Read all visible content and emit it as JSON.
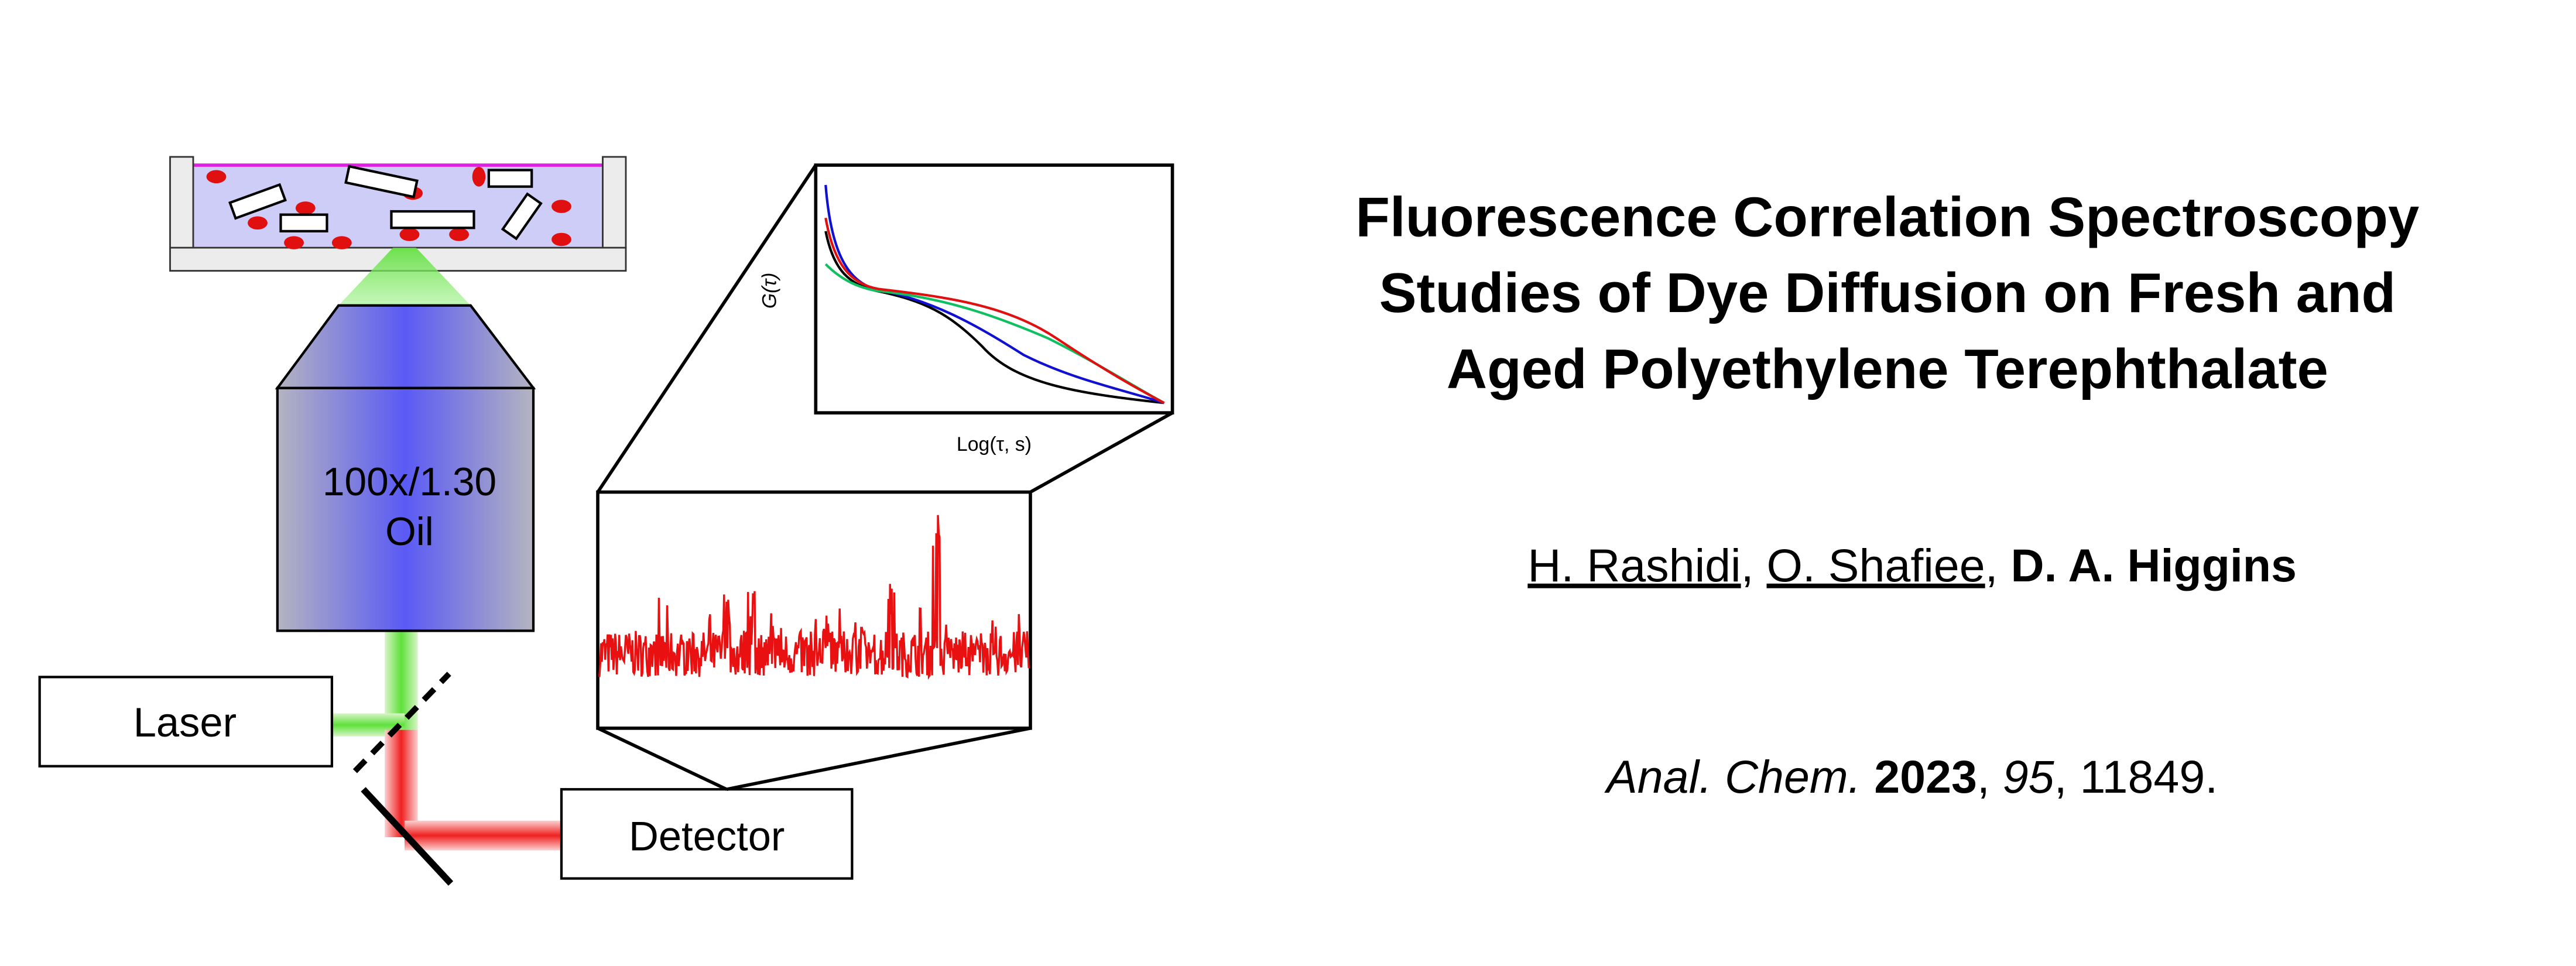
{
  "objective": {
    "magnification": "100x/1.30",
    "immersion": "Oil"
  },
  "laser": "Laser",
  "detector": "Detector",
  "correlation_plot": {
    "y_label": "G(τ)",
    "x_label": "Log(τ, s)"
  },
  "paper": {
    "title_lines": [
      "Fluorescence Correlation Spectroscopy",
      "Studies of Dye Diffusion on Fresh and",
      "Aged Polyethylene Terephthalate"
    ],
    "authors": [
      {
        "name": "H. Rashidi",
        "underline": true,
        "bold": false
      },
      {
        "name": "O. Shafiee",
        "underline": true,
        "bold": false
      },
      {
        "name": "D. A. Higgins",
        "underline": false,
        "bold": true
      }
    ],
    "separator": ", ",
    "citation": {
      "journal": "Anal. Chem.",
      "year": "2023",
      "volume": "95",
      "pages": "11849."
    }
  }
}
